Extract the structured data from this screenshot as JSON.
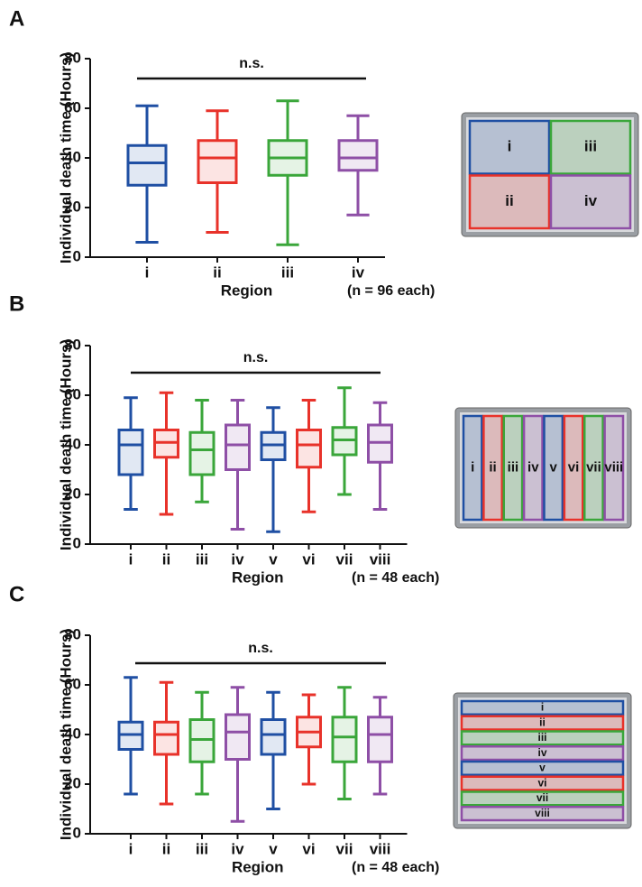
{
  "chart_data": [
    {
      "type": "box",
      "panel": "A",
      "ylabel": "Individual death time (Hours)",
      "xlabel": "Region",
      "note": "(n = 96 each)",
      "annotation": "n.s.",
      "categories": [
        "i",
        "ii",
        "iii",
        "iv"
      ],
      "colors": [
        "#1f4fa3",
        "#e8322a",
        "#3aa63a",
        "#8e4fa6"
      ],
      "boxes": [
        {
          "min": 6,
          "q1": 29,
          "median": 38,
          "q3": 45,
          "max": 61
        },
        {
          "min": 10,
          "q1": 30,
          "median": 40,
          "q3": 47,
          "max": 59
        },
        {
          "min": 5,
          "q1": 33,
          "median": 40,
          "q3": 47,
          "max": 63
        },
        {
          "min": 17,
          "q1": 35,
          "median": 40,
          "q3": 47,
          "max": 57
        }
      ],
      "ylim": [
        0,
        80
      ],
      "yticks": [
        0,
        20,
        40,
        60,
        80
      ],
      "inset_labels": [
        "i",
        "iii",
        "ii",
        "iv"
      ]
    },
    {
      "type": "box",
      "panel": "B",
      "ylabel": "Individual death time (Hours)",
      "xlabel": "Region",
      "note": "(n = 48 each)",
      "annotation": "n.s.",
      "categories": [
        "i",
        "ii",
        "iii",
        "iv",
        "v",
        "vi",
        "vii",
        "viii"
      ],
      "colors": [
        "#1f4fa3",
        "#e8322a",
        "#3aa63a",
        "#8e4fa6",
        "#1f4fa3",
        "#e8322a",
        "#3aa63a",
        "#8e4fa6"
      ],
      "boxes": [
        {
          "min": 14,
          "q1": 28,
          "median": 40,
          "q3": 46,
          "max": 59
        },
        {
          "min": 12,
          "q1": 35,
          "median": 41,
          "q3": 46,
          "max": 61
        },
        {
          "min": 17,
          "q1": 28,
          "median": 38,
          "q3": 45,
          "max": 58
        },
        {
          "min": 6,
          "q1": 30,
          "median": 40,
          "q3": 48,
          "max": 58
        },
        {
          "min": 5,
          "q1": 34,
          "median": 40,
          "q3": 45,
          "max": 55
        },
        {
          "min": 13,
          "q1": 31,
          "median": 40,
          "q3": 46,
          "max": 58
        },
        {
          "min": 20,
          "q1": 36,
          "median": 42,
          "q3": 47,
          "max": 63
        },
        {
          "min": 14,
          "q1": 33,
          "median": 41,
          "q3": 48,
          "max": 57
        }
      ],
      "ylim": [
        0,
        80
      ],
      "yticks": [
        0,
        20,
        40,
        60,
        80
      ],
      "inset_labels": [
        "i",
        "ii",
        "iii",
        "iv",
        "v",
        "vi",
        "vii",
        "viii"
      ]
    },
    {
      "type": "box",
      "panel": "C",
      "ylabel": "Individual death time (Hours)",
      "xlabel": "Region",
      "note": "(n = 48 each)",
      "annotation": "n.s.",
      "categories": [
        "i",
        "ii",
        "iii",
        "iv",
        "v",
        "vi",
        "vii",
        "viii"
      ],
      "colors": [
        "#1f4fa3",
        "#e8322a",
        "#3aa63a",
        "#8e4fa6",
        "#1f4fa3",
        "#e8322a",
        "#3aa63a",
        "#8e4fa6"
      ],
      "boxes": [
        {
          "min": 16,
          "q1": 34,
          "median": 40,
          "q3": 45,
          "max": 63
        },
        {
          "min": 12,
          "q1": 32,
          "median": 40,
          "q3": 45,
          "max": 61
        },
        {
          "min": 16,
          "q1": 29,
          "median": 38,
          "q3": 46,
          "max": 57
        },
        {
          "min": 5,
          "q1": 30,
          "median": 41,
          "q3": 48,
          "max": 59
        },
        {
          "min": 10,
          "q1": 32,
          "median": 40,
          "q3": 46,
          "max": 57
        },
        {
          "min": 20,
          "q1": 35,
          "median": 41,
          "q3": 47,
          "max": 56
        },
        {
          "min": 14,
          "q1": 29,
          "median": 39,
          "q3": 47,
          "max": 59
        },
        {
          "min": 16,
          "q1": 29,
          "median": 40,
          "q3": 47,
          "max": 55
        }
      ],
      "ylim": [
        0,
        80
      ],
      "yticks": [
        0,
        20,
        40,
        60,
        80
      ],
      "inset_labels": [
        "i",
        "ii",
        "iii",
        "iv",
        "v",
        "vi",
        "vii",
        "viii"
      ]
    }
  ]
}
